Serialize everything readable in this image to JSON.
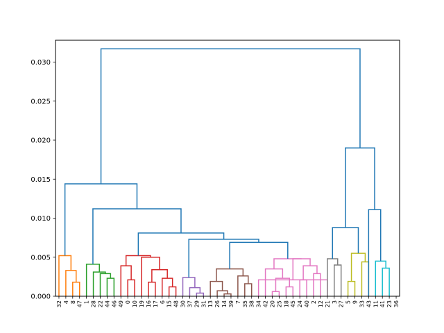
{
  "chart_data": {
    "type": "dendrogram",
    "title": "",
    "xlabel": "",
    "ylabel": "",
    "ylim": [
      0,
      0.0328
    ],
    "y_ticks": [
      "0.000",
      "0.005",
      "0.010",
      "0.015",
      "0.020",
      "0.025",
      "0.030"
    ],
    "y_tick_values": [
      0,
      0.005,
      0.01,
      0.015,
      0.02,
      0.025,
      0.03
    ],
    "leaf_labels": [
      "32",
      "4",
      "8",
      "47",
      "1",
      "28",
      "22",
      "44",
      "46",
      "49",
      "0",
      "10",
      "19",
      "16",
      "17",
      "6",
      "15",
      "48",
      "30",
      "37",
      "29",
      "31",
      "13",
      "26",
      "14",
      "39",
      "7",
      "35",
      "38",
      "34",
      "42",
      "20",
      "25",
      "18",
      "45",
      "24",
      "40",
      "2",
      "12",
      "21",
      "3",
      "27",
      "5",
      "9",
      "33",
      "43",
      "11",
      "41",
      "23",
      "36"
    ],
    "above_threshold_color": "#1f77b4",
    "cluster_colors": [
      "#ff7f0e",
      "#2ca02c",
      "#d62728",
      "#9467bd",
      "#8c564b",
      "#e377c2",
      "#7f7f7f",
      "#bcbd22",
      "#17becf"
    ],
    "grid": false,
    "merges": [
      {
        "l": 2,
        "r": 3,
        "h": 0.0018,
        "c": 0
      },
      {
        "l": 1,
        "r": "m0",
        "h": 0.0033,
        "c": 0
      },
      {
        "l": 0,
        "r": "m1",
        "h": 0.0052,
        "c": 0
      },
      {
        "l": 7,
        "r": 8,
        "h": 0.0023,
        "c": 1
      },
      {
        "l": 6,
        "r": "m3",
        "h": 0.0029,
        "c": 1
      },
      {
        "l": 5,
        "r": "m4",
        "h": 0.0031,
        "c": 1
      },
      {
        "l": 4,
        "r": "m5",
        "h": 0.0041,
        "c": 1
      },
      {
        "l": 10,
        "r": 11,
        "h": 0.0021,
        "c": 2
      },
      {
        "l": 9,
        "r": "m7",
        "h": 0.0039,
        "c": 2
      },
      {
        "l": 13,
        "r": 14,
        "h": 0.0018,
        "c": 2
      },
      {
        "l": 16,
        "r": 17,
        "h": 0.0012,
        "c": 2
      },
      {
        "l": 15,
        "r": "m10",
        "h": 0.0023,
        "c": 2
      },
      {
        "l": "m9",
        "r": "m11",
        "h": 0.0034,
        "c": 2
      },
      {
        "l": 12,
        "r": "m12",
        "h": 0.005,
        "c": 2
      },
      {
        "l": "m8",
        "r": "m13",
        "h": 0.0052,
        "c": 2
      },
      {
        "l": 20,
        "r": 21,
        "h": 0.0004,
        "c": 3
      },
      {
        "l": 19,
        "r": "m15",
        "h": 0.0011,
        "c": 3
      },
      {
        "l": 18,
        "r": "m16",
        "h": 0.0024,
        "c": 3
      },
      {
        "l": 24,
        "r": 25,
        "h": 0.0003,
        "c": 4
      },
      {
        "l": 23,
        "r": "m18",
        "h": 0.0007,
        "c": 4
      },
      {
        "l": 22,
        "r": "m19",
        "h": 0.0019,
        "c": 4
      },
      {
        "l": 27,
        "r": 28,
        "h": 0.0016,
        "c": 4
      },
      {
        "l": 26,
        "r": "m21",
        "h": 0.0026,
        "c": 4
      },
      {
        "l": "m20",
        "r": "m22",
        "h": 0.0035,
        "c": 4
      },
      {
        "l": 31,
        "r": 32,
        "h": 0.0006,
        "c": 5
      },
      {
        "l": 33,
        "r": 34,
        "h": 0.0012,
        "c": 5
      },
      {
        "l": "m24",
        "r": "m25",
        "h": 0.0023,
        "c": 5
      },
      {
        "l": 30,
        "r": "m26",
        "h": 0.0035,
        "c": 5
      },
      {
        "l": 29,
        "r": 39,
        "h": 0.0021,
        "c": 5
      },
      {
        "l": 35,
        "r": 36,
        "h": 0.0021,
        "c": 5
      },
      {
        "l": 37,
        "r": 38,
        "h": 0.0029,
        "c": 5
      },
      {
        "l": "m29",
        "r": "m30",
        "h": 0.0039,
        "c": 5
      },
      {
        "l": "m28",
        "r": "m31",
        "h": 0.0048,
        "c": 5
      },
      {
        "l": "m27",
        "r": "m32",
        "h": 0.0048,
        "c": 5
      },
      {
        "l": 40,
        "r": 41,
        "h": 0.004,
        "c": 6
      },
      {
        "l": 39,
        "r": "m34",
        "h": 0.0048,
        "c": 6
      },
      {
        "l": 42,
        "r": 43,
        "h": 0.0019,
        "c": 7
      },
      {
        "l": 44,
        "r": 45,
        "h": 0.0044,
        "c": 7
      },
      {
        "l": "m36",
        "r": "m37",
        "h": 0.0055,
        "c": 7
      },
      {
        "l": 47,
        "r": 48,
        "h": 0.0036,
        "c": 8
      },
      {
        "l": 46,
        "r": "m39",
        "h": 0.0045,
        "c": 8
      },
      {
        "l": "m23",
        "r": "m33",
        "h": 0.0069,
        "c": -1
      },
      {
        "l": "m17",
        "r": "m41",
        "h": 0.0073,
        "c": -1
      },
      {
        "l": "m14",
        "r": "m42",
        "h": 0.0081,
        "c": -1
      },
      {
        "l": "m6",
        "r": "m43",
        "h": 0.0112,
        "c": -1
      },
      {
        "l": "m2",
        "r": "m44",
        "h": 0.0144,
        "c": -1
      },
      {
        "l": "m35",
        "r": "m38",
        "h": 0.0088,
        "c": -1
      },
      {
        "l": 45,
        "r": "m40",
        "h": 0.0111,
        "c": -1
      },
      {
        "l": "m46",
        "r": "m47",
        "h": 0.019,
        "c": -1
      },
      {
        "l": "m45",
        "r": "m48",
        "h": 0.0317,
        "c": -1
      }
    ]
  }
}
